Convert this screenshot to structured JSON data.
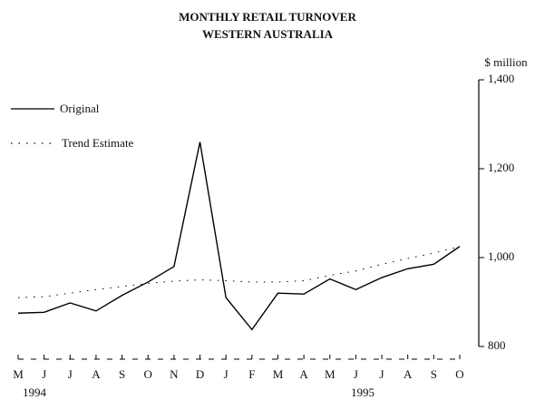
{
  "chart_data": {
    "type": "line",
    "title": "MONTHLY RETAIL TURNOVER",
    "subtitle": "WESTERN AUSTRALIA",
    "y_axis_label": "$ million",
    "categories": [
      "M",
      "J",
      "J",
      "A",
      "S",
      "O",
      "N",
      "D",
      "J",
      "F",
      "M",
      "A",
      "M",
      "J",
      "J",
      "A",
      "S",
      "O"
    ],
    "year_labels": [
      "1994",
      "1995"
    ],
    "series": [
      {
        "name": "Original",
        "color": "#000000",
        "style": "solid",
        "values": [
          875,
          877,
          898,
          880,
          915,
          945,
          980,
          1260,
          910,
          838,
          920,
          918,
          952,
          928,
          955,
          975,
          985,
          1025
        ]
      },
      {
        "name": "Trend Estimate",
        "color": "#000000",
        "style": "dotted",
        "values": [
          910,
          912,
          920,
          928,
          935,
          942,
          947,
          950,
          948,
          945,
          945,
          948,
          960,
          970,
          985,
          998,
          1010,
          1025
        ]
      }
    ],
    "ylim": [
      800,
      1400
    ],
    "yticks": [
      800,
      {
        "value": 1000,
        "label": "1,000"
      },
      {
        "value": 1200,
        "label": "1,200"
      },
      {
        "value": 1400,
        "label": "1,400"
      }
    ],
    "y_axis_side": "right",
    "legend": "upper left",
    "grid": false
  }
}
